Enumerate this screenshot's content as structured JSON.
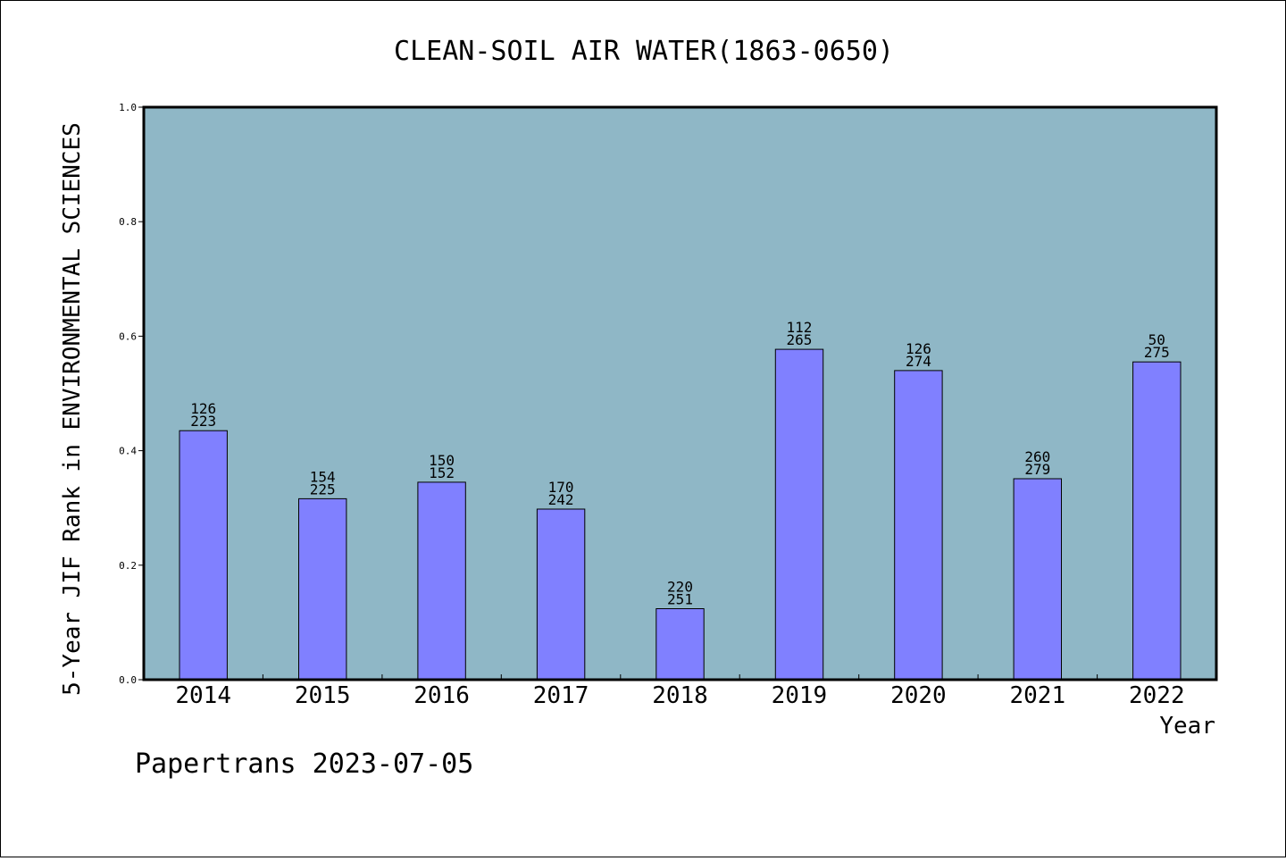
{
  "chart_data": {
    "type": "bar",
    "title": "CLEAN-SOIL AIR WATER(1863-0650)",
    "xlabel": "Year",
    "ylabel": "5-Year JIF Rank in ENVIRONMENTAL SCIENCES",
    "categories": [
      "2014",
      "2015",
      "2016",
      "2017",
      "2018",
      "2019",
      "2020",
      "2021",
      "2022"
    ],
    "values": [
      0.435,
      0.316,
      0.345,
      0.298,
      0.124,
      0.577,
      0.54,
      0.351,
      0.555
    ],
    "labels_top": [
      "126",
      "154",
      "150",
      "170",
      "220",
      "112",
      "126",
      "260",
      "50"
    ],
    "labels_bottom": [
      "223",
      "225",
      "152",
      "242",
      "251",
      "265",
      "274",
      "279",
      "275"
    ],
    "ylim": [
      0,
      1.0
    ],
    "yticks": [
      "0.0",
      "0.2",
      "0.4",
      "0.6",
      "0.8",
      "1.0"
    ],
    "grid": false,
    "colors": {
      "plot_bg": "#8fb7c6",
      "bar_fill": "#8080ff",
      "bar_edge": "#000000"
    }
  },
  "footer": "Papertrans 2023-07-05"
}
